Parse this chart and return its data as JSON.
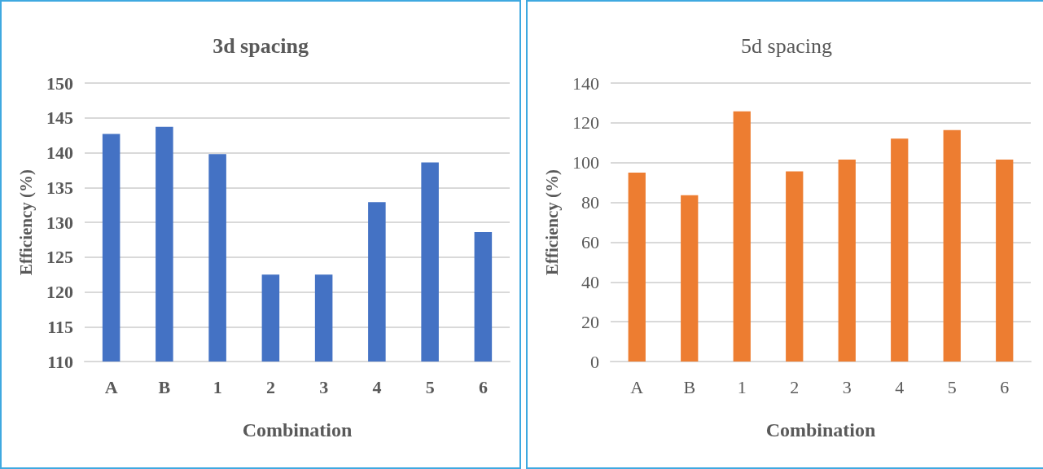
{
  "chart_data": [
    {
      "type": "bar",
      "title": "3d spacing",
      "xlabel": "Combination",
      "ylabel": "Efficiency (%)",
      "categories": [
        "A",
        "B",
        "1",
        "2",
        "3",
        "4",
        "5",
        "6"
      ],
      "values": [
        142.7,
        143.7,
        139.8,
        122.5,
        122.5,
        132.9,
        138.6,
        128.6
      ],
      "color": "#4472c4",
      "ylim": [
        110,
        150
      ],
      "yticks": [
        110,
        115,
        120,
        125,
        130,
        135,
        140,
        145,
        150
      ],
      "grid": "y"
    },
    {
      "type": "bar",
      "title": "5d spacing",
      "xlabel": "Combination",
      "ylabel": "Efficiency (%)",
      "categories": [
        "A",
        "B",
        "1",
        "2",
        "3",
        "4",
        "5",
        "6"
      ],
      "values": [
        95.0,
        83.6,
        125.8,
        95.6,
        101.5,
        112.1,
        116.4,
        101.5
      ],
      "color": "#ed7d31",
      "ylim": [
        0,
        140
      ],
      "yticks": [
        0,
        20,
        40,
        60,
        80,
        100,
        120,
        140
      ],
      "grid": "y"
    }
  ]
}
